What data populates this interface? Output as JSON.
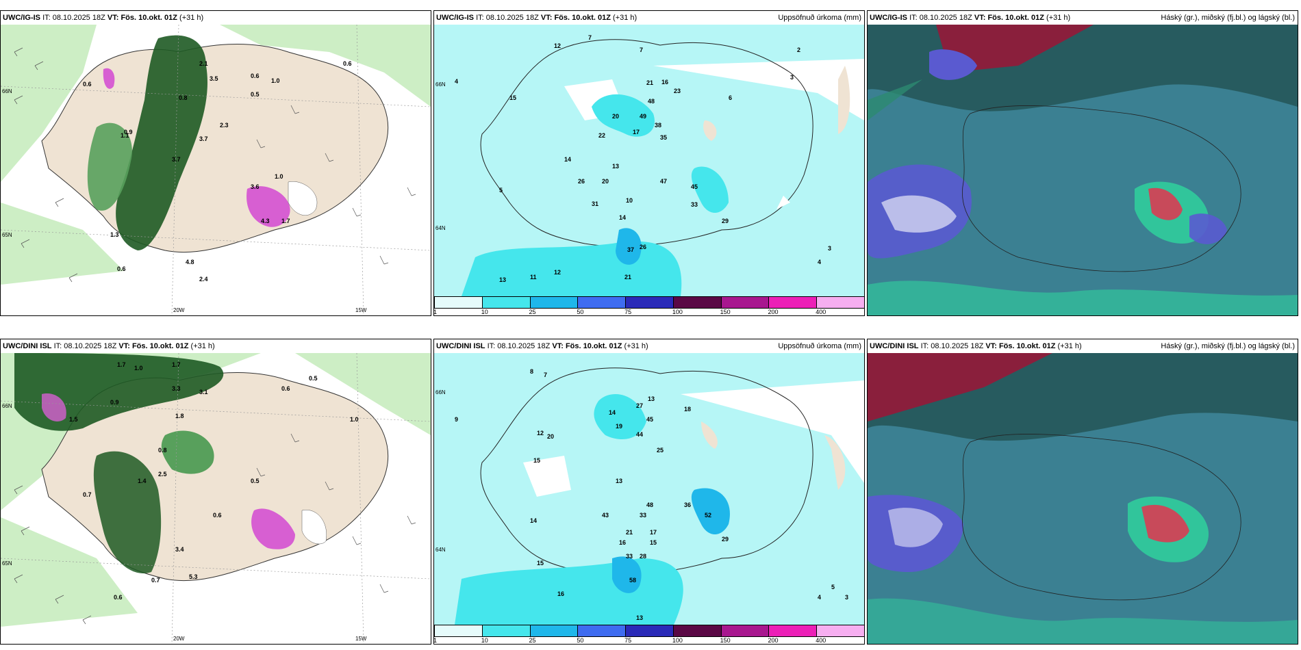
{
  "panels": [
    {
      "model": "UWC/IG-IS",
      "it_label": "IT:",
      "it_value": "08.10.2025 18Z",
      "vt_label": "VT:",
      "vt_value": "Fös. 10.okt. 01Z",
      "lead": "(+31 h)",
      "title": "",
      "grid_labels": [
        "66N",
        "65N",
        "20W",
        "15W"
      ],
      "values": [
        "2.1",
        "0.6",
        "1.0",
        "3.5",
        "0.5",
        "0.8",
        "2.3",
        "0.6",
        "3.7",
        "3.7",
        "1.1",
        "0.9",
        "1.3",
        "4.3",
        "3.6",
        "1.7",
        "0.6",
        "1.0",
        "4.8",
        "2.4",
        "0.6"
      ]
    },
    {
      "model": "UWC/IG-IS",
      "it_label": "IT:",
      "it_value": "08.10.2025 18Z",
      "vt_label": "VT:",
      "vt_value": "Fös. 10.okt. 01Z",
      "lead": "(+31 h)",
      "title": "Uppsöfnuð úrkoma (mm)",
      "grid_labels": [
        "66N",
        "64N"
      ],
      "values": [
        "12",
        "7",
        "7",
        "4",
        "3",
        "2",
        "21",
        "16",
        "23",
        "48",
        "49",
        "38",
        "20",
        "22",
        "35",
        "17",
        "14",
        "15",
        "13",
        "6",
        "5",
        "10",
        "26",
        "20",
        "47",
        "45",
        "33",
        "31",
        "14",
        "29",
        "37",
        "26",
        "13",
        "11",
        "12",
        "4",
        "3",
        "21"
      ],
      "colorbar": [
        "1",
        "10",
        "25",
        "50",
        "75",
        "100",
        "150",
        "200",
        "400"
      ]
    },
    {
      "model": "UWC/IG-IS",
      "it_label": "IT:",
      "it_value": "08.10.2025 18Z",
      "vt_label": "VT:",
      "vt_value": "Fös. 10.okt. 01Z",
      "lead": "(+31 h)",
      "title": "Háský (gr.), miðský (fj.bl.) og lágský (bl.)",
      "grid_labels": [],
      "values": []
    },
    {
      "model": "UWC/DINI ISL",
      "it_label": "IT:",
      "it_value": "08.10.2025 18Z",
      "vt_label": "VT:",
      "vt_value": "Fös. 10.okt. 01Z",
      "lead": "(+31 h)",
      "title": "",
      "grid_labels": [
        "66N",
        "65N",
        "20W",
        "15W"
      ],
      "values": [
        "1.7",
        "1.0",
        "1.7",
        "3.3",
        "0.5",
        "0.6",
        "1.8",
        "3.1",
        "0.9",
        "1.4",
        "0.8",
        "2.5",
        "0.5",
        "0.6",
        "1.0",
        "1.5",
        "0.7",
        "3.4",
        "5.3",
        "0.6",
        "0.7"
      ]
    },
    {
      "model": "UWC/DINI ISL",
      "it_label": "IT:",
      "it_value": "08.10.2025 18Z",
      "vt_label": "VT:",
      "vt_value": "Fös. 10.okt. 01Z",
      "lead": "(+31 h)",
      "title": "Uppsöfnuð úrkoma (mm)",
      "grid_labels": [
        "66N",
        "64N"
      ],
      "values": [
        "8",
        "7",
        "9",
        "27",
        "13",
        "18",
        "14",
        "19",
        "44",
        "45",
        "25",
        "20",
        "12",
        "15",
        "13",
        "48",
        "36",
        "43",
        "52",
        "33",
        "17",
        "29",
        "21",
        "16",
        "15",
        "14",
        "33",
        "28",
        "58",
        "16",
        "15",
        "5",
        "4",
        "3",
        "13"
      ],
      "colorbar": [
        "1",
        "10",
        "25",
        "50",
        "75",
        "100",
        "150",
        "200",
        "400"
      ]
    },
    {
      "model": "UWC/DINI ISL",
      "it_label": "IT:",
      "it_value": "08.10.2025 18Z",
      "vt_label": "VT:",
      "vt_value": "Fös. 10.okt. 01Z",
      "lead": "(+31 h)",
      "title": "Háský (gr.), miðský (fj.bl.) og lágský (bl.)",
      "grid_labels": [],
      "values": []
    }
  ],
  "colors": {
    "land": "#efe3d3",
    "sea_light_green": "#cdeec5",
    "dark_green": "#1e5a23",
    "mid_green": "#58a05c",
    "magenta": "#d75fd2",
    "precip_cyan_light": "#b6f6f6",
    "precip_cyan": "#2ee2ea",
    "cloud_teal": "#3b8092",
    "cloud_dark": "#1f4b4a",
    "cloud_blue": "#5a5ad0",
    "cloud_red": "#8a1f3c"
  },
  "colorbar_colors": [
    "#e6fbfb",
    "#45e6ec",
    "#1fb7ea",
    "#3f6cf0",
    "#2a2ab8",
    "#5a0845",
    "#a8178f",
    "#ec1fb7",
    "#f6aef0"
  ]
}
